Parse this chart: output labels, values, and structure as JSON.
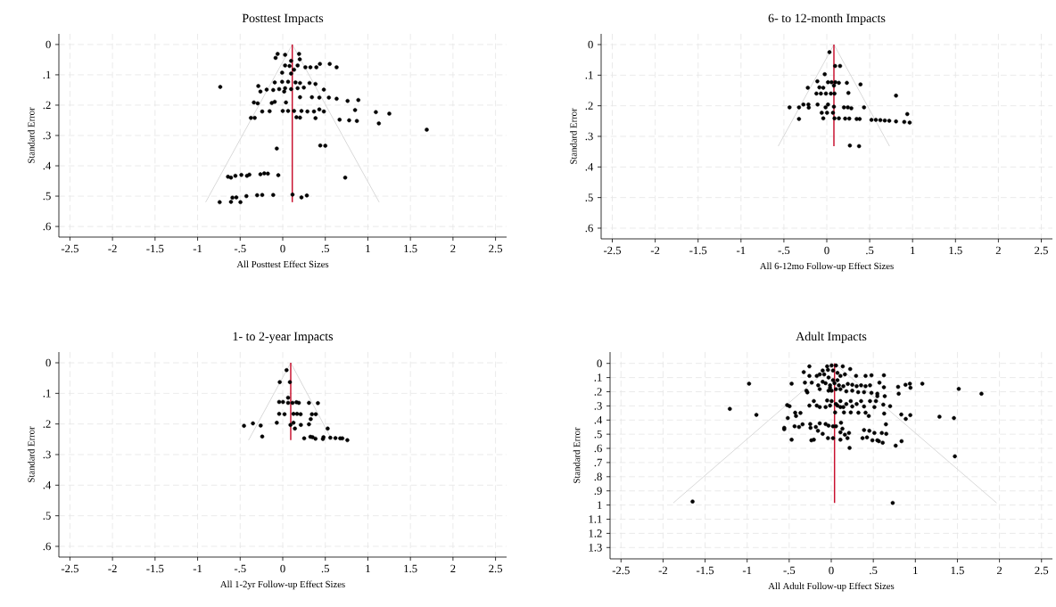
{
  "chart_data": [
    {
      "type": "scatter",
      "title": "Posttest Impacts",
      "xlabel": "All Posttest Effect Sizes",
      "ylabel": "Standard Error",
      "xlim": [
        -2.63,
        2.63
      ],
      "ylim": [
        0.635,
        -0.035
      ],
      "grid": true,
      "xticks": [
        {
          "value": -2.5,
          "label": "-2.5"
        },
        {
          "value": -2,
          "label": "-2"
        },
        {
          "value": -1.5,
          "label": "-1.5"
        },
        {
          "value": -1,
          "label": "-1"
        },
        {
          "value": -0.5,
          "label": "-.5"
        },
        {
          "value": 0,
          "label": "0"
        },
        {
          "value": 0.5,
          "label": ".5"
        },
        {
          "value": 1,
          "label": "1"
        },
        {
          "value": 1.5,
          "label": "1.5"
        },
        {
          "value": 2,
          "label": "2"
        },
        {
          "value": 2.5,
          "label": "2.5"
        }
      ],
      "yticks": [
        {
          "value": 0,
          "label": "0"
        },
        {
          "value": 0.1,
          "label": ".1"
        },
        {
          "value": 0.2,
          "label": ".2"
        },
        {
          "value": 0.3,
          "label": ".3"
        },
        {
          "value": 0.4,
          "label": ".4"
        },
        {
          "value": 0.5,
          "label": ".5"
        },
        {
          "value": 0.6,
          "label": ".6"
        }
      ],
      "series": [
        {
          "type": "scatter",
          "marker": "circle",
          "color": "#000000",
          "x": [
            -0.06,
            0.028,
            -0.084,
            0.192,
            0.2,
            0.098,
            0.175,
            0.028,
            0.08,
            0.266,
            0.325,
            0.395,
            0.437,
            0.552,
            0.633,
            0.133,
            -0.007,
            0.098,
            -0.094,
            -0.007,
            0.063,
            0.15,
            0.203,
            0.315,
            0.385,
            -0.734,
            -0.287,
            -0.262,
            -0.189,
            -0.112,
            -0.042,
            0.028,
            0.098,
            0.175,
            0.248,
            0.483,
            0.017,
            0.203,
            0.343,
            0.43,
            0.542,
            0.633,
            0.762,
            0.888,
            -0.339,
            -0.294,
            -0.129,
            -0.094,
            0.038,
            -0.241,
            -0.154,
            0,
            0.063,
            0.133,
            0.22,
            0.29,
            0.367,
            0.43,
            0.483,
            0.85,
            1.094,
            1.252,
            -0.374,
            -0.329,
            0.161,
            0.203,
            0.385,
            0.668,
            0.78,
            0.871,
            1.129,
            1.692,
            -0.07,
            0.441,
            0.5,
            -0.643,
            -0.608,
            -0.556,
            -0.486,
            -0.42,
            -0.392,
            -0.262,
            -0.217,
            -0.175,
            -0.052,
            0.734,
            -0.741,
            -0.608,
            -0.497,
            -0.591,
            -0.545,
            -0.427,
            -0.301,
            -0.241,
            -0.112,
            0.115,
            0.22,
            0.283
          ],
          "values": [
            0.031,
            0.034,
            0.044,
            0.031,
            0.049,
            0.054,
            0.069,
            0.069,
            0.071,
            0.075,
            0.075,
            0.075,
            0.064,
            0.064,
            0.075,
            0.083,
            0.093,
            0.096,
            0.125,
            0.123,
            0.123,
            0.125,
            0.127,
            0.127,
            0.13,
            0.14,
            0.137,
            0.155,
            0.149,
            0.15,
            0.147,
            0.144,
            0.147,
            0.144,
            0.142,
            0.149,
            0.155,
            0.174,
            0.174,
            0.175,
            0.175,
            0.179,
            0.186,
            0.183,
            0.191,
            0.194,
            0.193,
            0.189,
            0.191,
            0.221,
            0.22,
            0.219,
            0.219,
            0.219,
            0.219,
            0.221,
            0.221,
            0.214,
            0.221,
            0.216,
            0.223,
            0.228,
            0.242,
            0.242,
            0.24,
            0.241,
            0.243,
            0.248,
            0.25,
            0.252,
            0.26,
            0.281,
            0.343,
            0.333,
            0.334,
            0.436,
            0.439,
            0.433,
            0.43,
            0.433,
            0.429,
            0.428,
            0.425,
            0.426,
            0.431,
            0.439,
            0.52,
            0.519,
            0.52,
            0.505,
            0.504,
            0.5,
            0.497,
            0.496,
            0.496,
            0.495,
            0.504,
            0.498
          ]
        },
        {
          "type": "line",
          "marker": "none",
          "color": "#d9d9d9",
          "x": [
            -0.906,
            0.112,
            1.133
          ],
          "values": [
            0.52,
            0,
            0.52
          ]
        },
        {
          "type": "line",
          "marker": "none",
          "color": "#c8102e",
          "x": [
            0.112,
            0.112
          ],
          "values": [
            0,
            0.52
          ]
        }
      ]
    },
    {
      "type": "scatter",
      "title": "6- to 12-month Impacts",
      "xlabel": "All 6-12mo Follow-up Effect Sizes",
      "ylabel": "Standard Error",
      "xlim": [
        -2.63,
        2.63
      ],
      "ylim": [
        0.635,
        -0.035
      ],
      "grid": true,
      "xticks": [
        {
          "value": -2.5,
          "label": "-2.5"
        },
        {
          "value": -2,
          "label": "-2"
        },
        {
          "value": -1.5,
          "label": "-1.5"
        },
        {
          "value": -1,
          "label": "-1"
        },
        {
          "value": -0.5,
          "label": "-.5"
        },
        {
          "value": 0,
          "label": "0"
        },
        {
          "value": 0.5,
          "label": ".5"
        },
        {
          "value": 1,
          "label": "1"
        },
        {
          "value": 1.5,
          "label": "1.5"
        },
        {
          "value": 2,
          "label": "2"
        },
        {
          "value": 2.5,
          "label": "2.5"
        }
      ],
      "yticks": [
        {
          "value": 0,
          "label": "0"
        },
        {
          "value": 0.1,
          "label": ".1"
        },
        {
          "value": 0.2,
          "label": ".2"
        },
        {
          "value": 0.3,
          "label": ".3"
        },
        {
          "value": 0.4,
          "label": ".4"
        },
        {
          "value": 0.5,
          "label": ".5"
        },
        {
          "value": 0.6,
          "label": ".6"
        }
      ],
      "series": [
        {
          "type": "scatter",
          "marker": "circle",
          "color": "#000000",
          "x": [
            0.031,
            0.097,
            0.155,
            -0.024,
            -0.11,
            0.014,
            0.055,
            0.1,
            0.141,
            0.083,
            0.234,
            0.393,
            -0.221,
            -0.086,
            -0.041,
            -0.121,
            -0.069,
            -0.01,
            0.048,
            0.09,
            0.252,
            0.807,
            -0.434,
            -0.324,
            -0.272,
            -0.214,
            -0.21,
            -0.107,
            -0.014,
            0.014,
            0.083,
            0.2,
            0.245,
            0.286,
            null,
            0.434,
            -0.059,
            0.003,
            0.072,
            0.938,
            -0.324,
            -0.041,
            0.09,
            0.141,
            0.214,
            0.262,
            0.348,
            0.383,
            0.521,
            0.572,
            0.624,
            0.676,
            0.728,
            0.807,
            0.903,
            0.966,
            0.269,
            0.376
          ],
          "values": [
            0.025,
            0.07,
            0.07,
            0.097,
            0.12,
            0.123,
            0.123,
            0.123,
            0.125,
            0.134,
            0.125,
            0.13,
            0.141,
            0.14,
            0.141,
            0.16,
            0.16,
            0.16,
            0.16,
            0.16,
            0.158,
            0.167,
            0.205,
            0.205,
            0.196,
            0.196,
            0.206,
            0.196,
            0.205,
            0.196,
            0.203,
            0.205,
            0.205,
            0.208,
            null,
            0.205,
            0.223,
            0.223,
            0.223,
            0.227,
            0.243,
            0.241,
            0.241,
            0.241,
            0.242,
            0.242,
            0.243,
            0.243,
            0.246,
            0.246,
            0.247,
            0.248,
            0.249,
            0.251,
            0.253,
            0.255,
            0.33,
            0.332
          ]
        },
        {
          "type": "line",
          "marker": "none",
          "color": "#d9d9d9",
          "x": [
            -0.566,
            0.083,
            0.731
          ],
          "values": [
            0.332,
            0,
            0.332
          ]
        },
        {
          "type": "line",
          "marker": "none",
          "color": "#c8102e",
          "x": [
            0.083,
            0.083
          ],
          "values": [
            0,
            0.332
          ]
        }
      ]
    },
    {
      "type": "scatter",
      "title": "1- to 2-year Impacts",
      "xlabel": "All 1-2yr Follow-up Effect Sizes",
      "ylabel": "Standard Error",
      "xlim": [
        -2.63,
        2.63
      ],
      "ylim": [
        0.635,
        -0.035
      ],
      "grid": true,
      "xticks": [
        {
          "value": -2.5,
          "label": "-2.5"
        },
        {
          "value": -2,
          "label": "-2"
        },
        {
          "value": -1.5,
          "label": "-1.5"
        },
        {
          "value": -1,
          "label": "-1"
        },
        {
          "value": -0.5,
          "label": "-.5"
        },
        {
          "value": 0,
          "label": "0"
        },
        {
          "value": 0.5,
          "label": ".5"
        },
        {
          "value": 1,
          "label": "1"
        },
        {
          "value": 1.5,
          "label": "1.5"
        },
        {
          "value": 2,
          "label": "2"
        },
        {
          "value": 2.5,
          "label": "2.5"
        }
      ],
      "yticks": [
        {
          "value": 0,
          "label": "0"
        },
        {
          "value": 0.1,
          "label": ".1"
        },
        {
          "value": 0.2,
          "label": ".2"
        },
        {
          "value": 0.3,
          "label": ".3"
        },
        {
          "value": 0.4,
          "label": ".4"
        },
        {
          "value": 0.5,
          "label": ".5"
        },
        {
          "value": 0.6,
          "label": ".6"
        }
      ],
      "series": [
        {
          "type": "scatter",
          "marker": "circle",
          "color": "#000000",
          "x": [
            0.045,
            -0.035,
            0.084,
            null,
            0.063,
            -0.042,
            0.003,
            0.063,
            0.115,
            0.161,
            0.189,
            0.308,
            0.413,
            -0.042,
            0.021,
            0.126,
            0.168,
            0.21,
            0.343,
            0.388,
            0.329,
            -0.07,
            0.126,
            0.091,
            0.213,
            0.308,
            -0.455,
            -0.35,
            -0.259,
            -0.241,
            0.143,
            0.528,
            0.252,
            0.325,
            0.35,
            0.385,
            0.472,
            0.479,
            0.559,
            0.619,
            0.675,
            0.7,
            0.759
          ],
          "values": [
            0.024,
            0.063,
            0.063,
            null,
            0.114,
            0.128,
            0.128,
            0.131,
            0.131,
            0.129,
            0.131,
            0.131,
            0.132,
            0.167,
            0.168,
            0.167,
            0.167,
            0.168,
            0.168,
            0.168,
            0.184,
            0.196,
            0.196,
            0.203,
            0.203,
            0.201,
            0.206,
            0.198,
            0.205,
            0.241,
            0.215,
            0.215,
            0.247,
            0.242,
            0.243,
            0.248,
            0.249,
            0.243,
            0.245,
            0.246,
            0.247,
            0.247,
            0.253
          ]
        },
        {
          "type": "line",
          "marker": "none",
          "color": "#d9d9d9",
          "x": [
            -0.402,
            0.094,
            0.58
          ],
          "values": [
            0.253,
            0,
            0.253
          ]
        },
        {
          "type": "line",
          "marker": "none",
          "color": "#c8102e",
          "x": [
            0.094,
            0.094
          ],
          "values": [
            0,
            0.253
          ]
        }
      ]
    },
    {
      "type": "scatter",
      "title": "Adult Impacts",
      "xlabel": "All Adult Follow-up Effect Sizes",
      "ylabel": "Standard Error",
      "xlim": [
        -2.63,
        2.63
      ],
      "ylim": [
        1.38,
        -0.08
      ],
      "grid": true,
      "xticks": [
        {
          "value": -2.5,
          "label": "-2.5"
        },
        {
          "value": -2,
          "label": "-2"
        },
        {
          "value": -1.5,
          "label": "-1.5"
        },
        {
          "value": -1,
          "label": "-1"
        },
        {
          "value": -0.5,
          "label": "-.5"
        },
        {
          "value": 0,
          "label": "0"
        },
        {
          "value": 0.5,
          "label": ".5"
        },
        {
          "value": 1,
          "label": "1"
        },
        {
          "value": 1.5,
          "label": "1.5"
        },
        {
          "value": 2,
          "label": "2"
        },
        {
          "value": 2.5,
          "label": "2.5"
        }
      ],
      "yticks": [
        {
          "value": 0,
          "label": "0"
        },
        {
          "value": 0.1,
          "label": ".1"
        },
        {
          "value": 0.2,
          "label": ".2"
        },
        {
          "value": 0.3,
          "label": ".3"
        },
        {
          "value": 0.4,
          "label": ".4"
        },
        {
          "value": 0.5,
          "label": ".5"
        },
        {
          "value": 0.6,
          "label": ".6"
        },
        {
          "value": 0.7,
          "label": ".7"
        },
        {
          "value": 0.8,
          "label": ".8"
        },
        {
          "value": 0.9,
          "label": ".9"
        },
        {
          "value": 1,
          "label": "1"
        },
        {
          "value": 1.1,
          "label": "1.1"
        },
        {
          "value": 1.2,
          "label": "1.2"
        },
        {
          "value": 1.3,
          "label": "1.3"
        }
      ],
      "series": [
        {
          "type": "scatter",
          "marker": "circle",
          "color": "#000000",
          "x": [
            -0.26,
            -0.327,
            -0.26,
            -0.172,
            -0.102,
            -0.049,
            0.004,
            0.056,
            0.137,
            0.225,
            -0.039,
            0.021,
            0.074,
            0.162,
            -0.137,
            -0.084,
            0.109,
            0.295,
            0.408,
            0.478,
            0.626,
            -0.977,
            -0.471,
            -0.313,
            -0.232,
            -0.155,
            -0.102,
            -0.067,
            -0.014,
            0.039,
            0.091,
            0.144,
            0.197,
            0.25,
            0.302,
            0.355,
            0.408,
            0.461,
            0.573,
            0.626,
            0.795,
            0.883,
            0.935,
            0.942,
            1.083,
            1.516,
            1.786,
            -0.295,
            -0.284,
            -0.137,
            -0.032,
            0.109,
            0.179,
            0.25,
            0.32,
            0.39,
            0.478,
            0.548,
            0.548,
            0.636,
            0.802,
            -0.524,
            -0.496,
            -0.26,
            -0.207,
            -0.172,
            -0.137,
            -0.067,
            -0.049,
            0.004,
            0.056,
            0.109,
            0.109,
            0.179,
            0.232,
            0.25,
            0.302,
            0.355,
            0.39,
            0.461,
            0.513,
            0.531,
            0.619,
            0.7,
            0.046,
            0.151,
            0.232,
            0.323,
            0.408,
            0.446,
            0.629,
            -0.517,
            -0.429,
            -0.419,
            -0.366,
            -1.206,
            -0.89,
            0.65,
            0.833,
            0.886,
            0.94,
            1.287,
            1.459,
            -0.559,
            -0.559,
            -0.471,
            -0.436,
            -0.383,
            -0.341,
            -0.25,
            -0.246,
            -0.183,
            -0.158,
            -0.137,
            -0.102,
            -0.067,
            -0.032,
            0.021,
            0.056,
            0.116,
            0.133,
            0.109,
            0.162,
            0.211,
            0.193,
            -0.236,
            -0.207,
            -0.039,
            0.021,
            0.109,
            0.218,
            0.39,
            0.453,
            0.372,
            0.425,
            0.513,
            0.489,
            0.548,
            0.566,
            0.612,
            0.601,
            0.654,
            0.766,
            0.836,
            1.47,
            -1.649,
            0.731,
            -0.032,
            0.021,
            0.074,
            -0.014,
            0.056,
            0.004,
            0.074,
            -0.014,
            0.144
          ],
          "values": [
            0.021,
            0.061,
            0.088,
            0.088,
            0.05,
            0.021,
            0.015,
            0.015,
            0.021,
            0.04,
            0.046,
            0.05,
            0.067,
            0.078,
            0.078,
            0.078,
            0.088,
            0.088,
            0.088,
            0.084,
            0.084,
            0.143,
            0.143,
            0.136,
            0.136,
            0.155,
            0.13,
            0.14,
            0.155,
            0.14,
            0.155,
            0.161,
            0.145,
            0.151,
            0.161,
            0.155,
            0.161,
            0.155,
            0.136,
            0.168,
            0.166,
            0.151,
            0.143,
            0.172,
            0.143,
            0.18,
            0.214,
            0.193,
            0.205,
            0.182,
            0.193,
            0.182,
            0.197,
            0.193,
            0.203,
            0.203,
            0.208,
            0.214,
            0.231,
            0.231,
            0.214,
            0.294,
            0.302,
            0.298,
            0.266,
            0.298,
            0.308,
            0.308,
            0.262,
            0.266,
            0.287,
            0.266,
            0.308,
            0.287,
            0.266,
            0.304,
            0.287,
            0.266,
            0.304,
            0.266,
            0.308,
            0.266,
            0.291,
            0.302,
            0.346,
            0.346,
            0.346,
            0.348,
            0.348,
            0.371,
            0.354,
            0.386,
            0.348,
            0.371,
            0.35,
            0.321,
            0.363,
            0.43,
            0.361,
            0.392,
            0.365,
            0.377,
            0.386,
            0.455,
            0.465,
            0.539,
            0.444,
            0.449,
            0.43,
            0.428,
            0.455,
            0.449,
            0.476,
            0.423,
            0.497,
            0.428,
            0.44,
            0.444,
            0.444,
            0.419,
            0.461,
            0.486,
            0.503,
            0.491,
            0.528,
            0.543,
            0.539,
            0.528,
            0.528,
            0.539,
            0.597,
            0.47,
            0.476,
            0.528,
            0.522,
            0.491,
            0.543,
            0.543,
            0.549,
            0.56,
            0.491,
            0.497,
            0.581,
            0.549,
            0.656,
            0.975,
            0.985,
            0.1,
            0.119,
            0.119,
            0.172,
            0.182,
            0.193,
            0.298,
            0.298,
            0.308
          ]
        },
        {
          "type": "line",
          "marker": "none",
          "color": "#d9d9d9",
          "x": [
            -1.878,
            0.039,
            1.966
          ],
          "values": [
            0.985,
            0,
            0.985
          ]
        },
        {
          "type": "line",
          "marker": "none",
          "color": "#c8102e",
          "x": [
            0.039,
            0.039
          ],
          "values": [
            0,
            0.985
          ]
        }
      ]
    }
  ]
}
